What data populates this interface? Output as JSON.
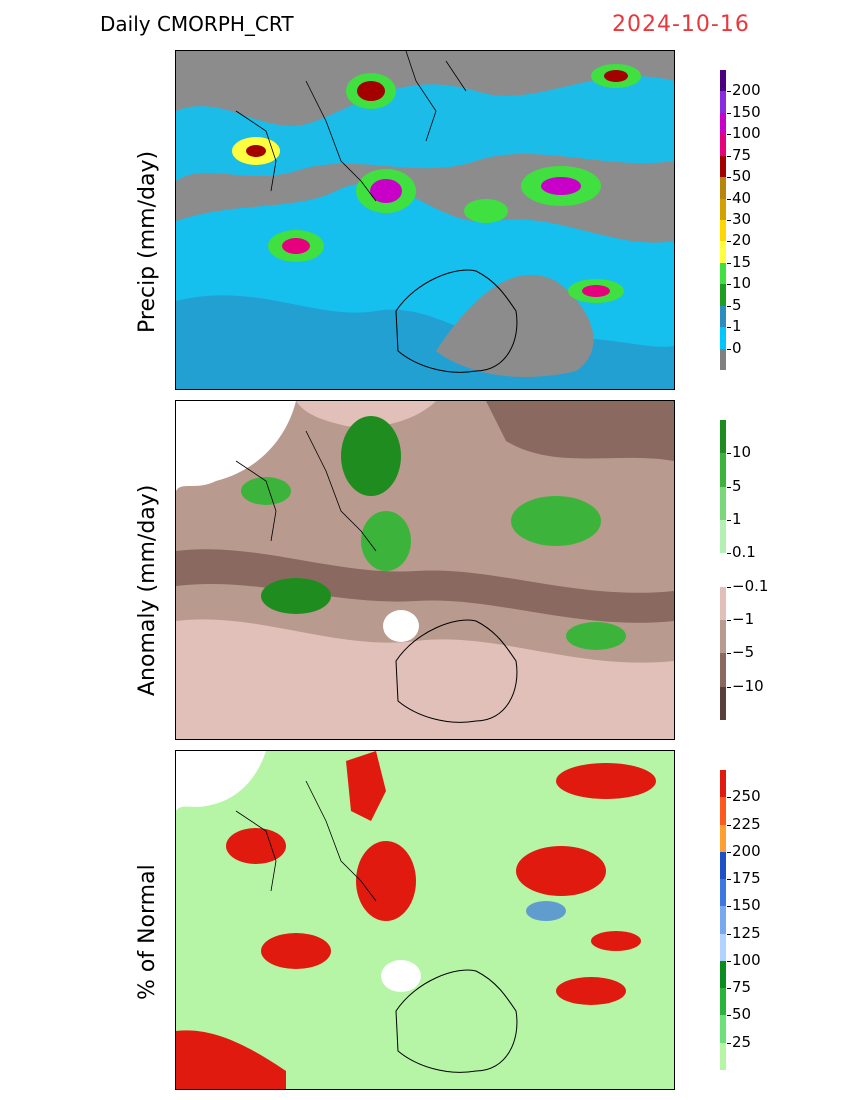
{
  "header": {
    "title": "Daily  CMORPH_CRT",
    "date": "2024-10-16"
  },
  "panels": [
    {
      "name": "precip",
      "ylabel": "Precip  (mm/day)",
      "background": "#8c8c8c",
      "colorbar": {
        "labels": [
          "200",
          "150",
          "100",
          "75",
          "50",
          "40",
          "30",
          "20",
          "15",
          "10",
          "5",
          "1",
          "0"
        ],
        "colors": [
          "#4b0082",
          "#8a2be2",
          "#c800c8",
          "#e6007e",
          "#a50000",
          "#b8860b",
          "#d4a000",
          "#ffd700",
          "#ffff40",
          "#40e040",
          "#1e9e1e",
          "#2b8cbe",
          "#00c8ff",
          "#808080"
        ]
      }
    },
    {
      "name": "anomaly",
      "ylabel": "Anomaly  (mm/day)",
      "background": "#b99a8e",
      "colorbar": {
        "labels": [
          "10",
          "5",
          "1",
          "0.1",
          "−0.1",
          "−1",
          "−5",
          "−10"
        ],
        "colors": [
          "#1e8c1e",
          "#3cb43c",
          "#7ad77a",
          "#b4f0b4",
          "#ffffff",
          "#e0c0b8",
          "#b99a8e",
          "#8a6a60",
          "#5a3e38"
        ]
      }
    },
    {
      "name": "percent",
      "ylabel": "%  of  Normal",
      "background": "#b6f5a6",
      "colorbar": {
        "labels": [
          "250",
          "225",
          "200",
          "175",
          "150",
          "125",
          "100",
          "75",
          "50",
          "25"
        ],
        "colors": [
          "#e01a0f",
          "#ff5a1e",
          "#ffa030",
          "#1e50c8",
          "#3c78e0",
          "#78a8f0",
          "#b4d2ff",
          "#0a8c1e",
          "#2bb43c",
          "#6ee07a",
          "#b6f5a6"
        ]
      }
    }
  ]
}
